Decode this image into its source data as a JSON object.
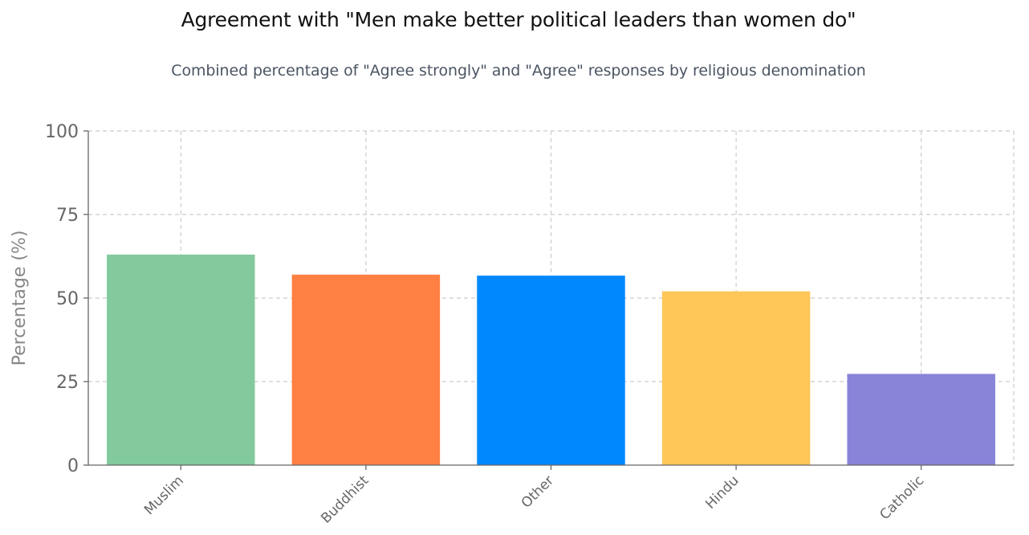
{
  "chart_data": {
    "type": "bar",
    "title": "Agreement with \"Men make better political leaders than women do\"",
    "subtitle": "Combined percentage of \"Agree strongly\" and \"Agree\" responses by religious denomination",
    "xlabel": "",
    "ylabel": "Percentage (%)",
    "categories": [
      "Muslim",
      "Buddhist",
      "Other",
      "Hindu",
      "Catholic"
    ],
    "values": [
      63,
      57,
      56.7,
      52,
      27.3
    ],
    "colors": [
      "#82ca9d",
      "#ff8042",
      "#0088fe",
      "#ffc658",
      "#8884d8"
    ],
    "ylim": [
      0,
      100
    ],
    "yticks": [
      0,
      25,
      50,
      75,
      100
    ],
    "grid": true,
    "legend": "none"
  }
}
